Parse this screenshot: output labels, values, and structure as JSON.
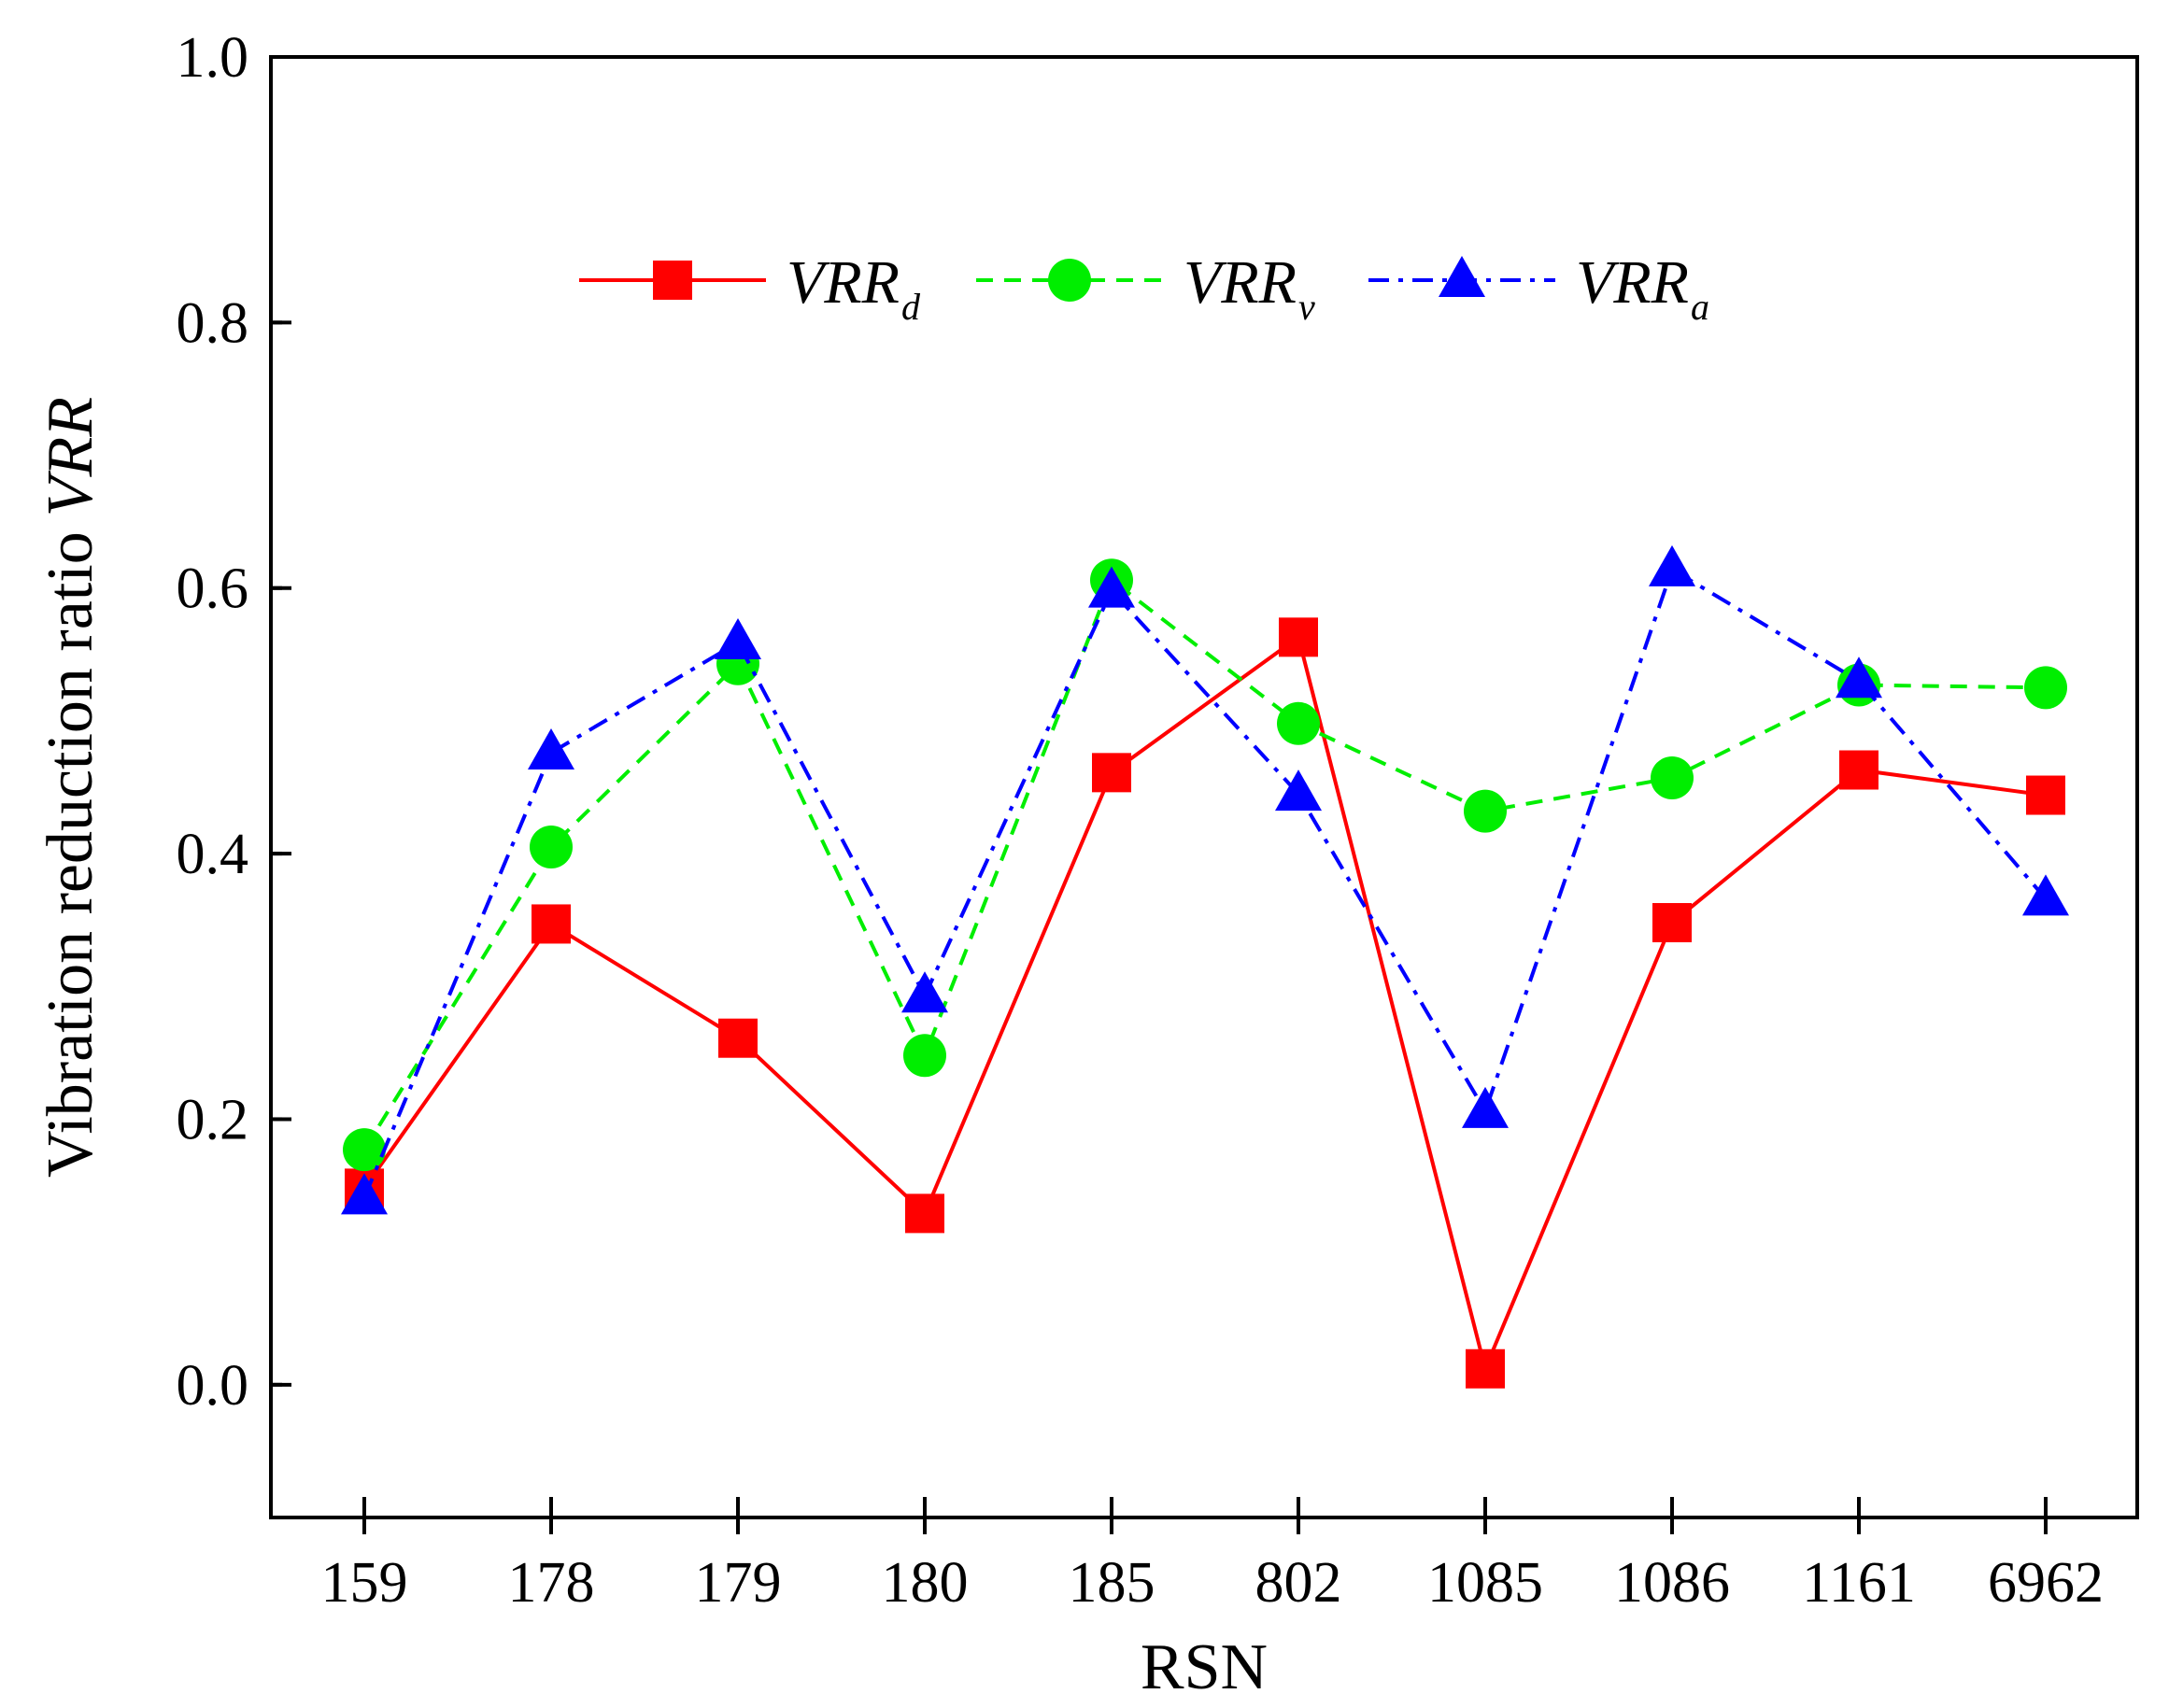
{
  "chart_data": {
    "type": "line",
    "title": "",
    "xlabel": "RSN",
    "ylabel": "Vibration reduction ratio",
    "ylabel_italic": "VRR",
    "categories": [
      "159",
      "178",
      "179",
      "180",
      "185",
      "802",
      "1085",
      "1086",
      "1161",
      "6962"
    ],
    "ylim": [
      -0.1,
      1.0
    ],
    "yticks": [
      0.0,
      0.2,
      0.4,
      0.6,
      0.8,
      1.0
    ],
    "ytick_labels": [
      "0.0",
      "0.2",
      "0.4",
      "0.6",
      "0.8",
      "1.0"
    ],
    "legend_position": "top-center",
    "series": [
      {
        "name": "VRRd",
        "label_main": "VRR",
        "label_sub": "d",
        "color": "#ff0000",
        "line_style": "solid",
        "marker": "square",
        "values": [
          0.148,
          0.347,
          0.261,
          0.129,
          0.461,
          0.563,
          0.012,
          0.348,
          0.463,
          0.444
        ]
      },
      {
        "name": "VRRv",
        "label_main": "VRR",
        "label_sub": "v",
        "color": "#00ee00",
        "line_style": "dash",
        "marker": "circle",
        "values": [
          0.177,
          0.405,
          0.543,
          0.248,
          0.606,
          0.498,
          0.432,
          0.457,
          0.527,
          0.525
        ]
      },
      {
        "name": "VRRa",
        "label_main": "VRR",
        "label_sub": "a",
        "color": "#0000ff",
        "line_style": "dashdot",
        "marker": "triangle",
        "values": [
          0.141,
          0.476,
          0.559,
          0.293,
          0.598,
          0.445,
          0.206,
          0.614,
          0.53,
          0.366
        ]
      }
    ]
  }
}
